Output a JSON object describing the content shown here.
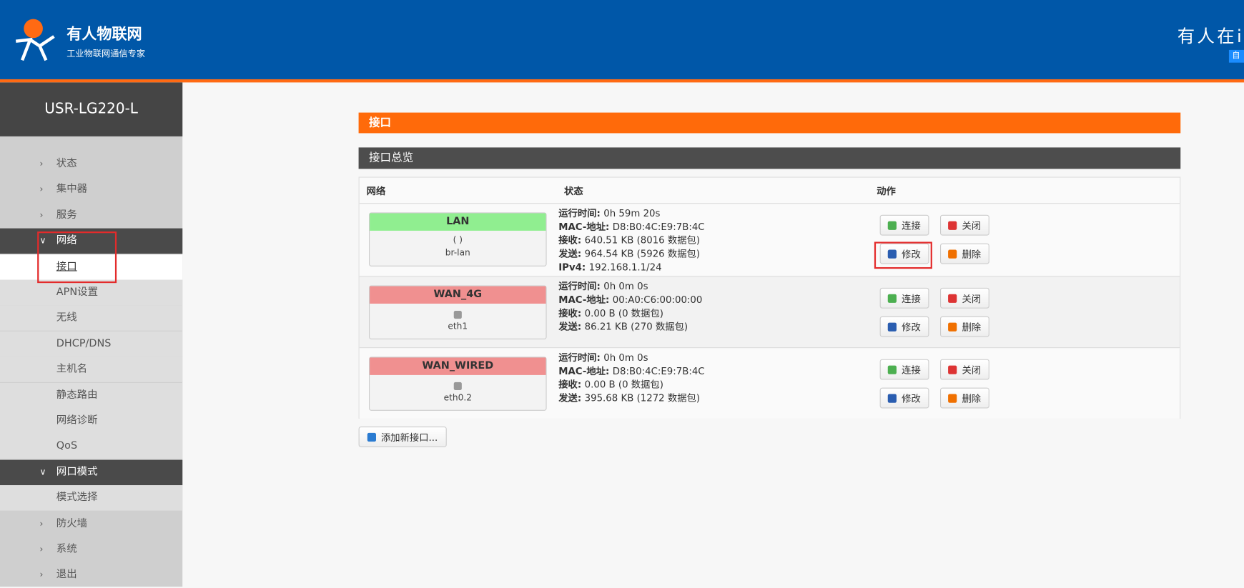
{
  "header": {
    "logo_name": "有人物联网",
    "logo_slogan": "工业物联网通信专家",
    "right_text": "有人在i",
    "badge": "自"
  },
  "sidebar": {
    "device": "USR-LG220-L",
    "menu": [
      {
        "label": "状态",
        "kind": "top"
      },
      {
        "label": "集中器",
        "kind": "top"
      },
      {
        "label": "服务",
        "kind": "top"
      },
      {
        "label": "网络",
        "kind": "open"
      },
      {
        "label": "接口",
        "kind": "current"
      },
      {
        "label": "APN设置",
        "kind": "sub"
      },
      {
        "label": "无线",
        "kind": "sub"
      },
      {
        "label": "DHCP/DNS",
        "kind": "sub"
      },
      {
        "label": "主机名",
        "kind": "sub"
      },
      {
        "label": "静态路由",
        "kind": "sub"
      },
      {
        "label": "网络诊断",
        "kind": "sub"
      },
      {
        "label": "QoS",
        "kind": "sub"
      },
      {
        "label": "网口模式",
        "kind": "open"
      },
      {
        "label": "模式选择",
        "kind": "sub"
      },
      {
        "label": "防火墙",
        "kind": "top"
      },
      {
        "label": "系统",
        "kind": "top"
      },
      {
        "label": "退出",
        "kind": "top"
      }
    ]
  },
  "main": {
    "title": "接口",
    "section": "接口总览",
    "table": {
      "headers": [
        "网络",
        "状态",
        "动作"
      ],
      "actions": [
        "连接",
        "关闭",
        "修改",
        "删除"
      ],
      "rows": [
        {
          "name": "LAN",
          "color": "#90ee90",
          "icons": "(   )",
          "device": "br-lan",
          "status": [
            [
              "运行时间:",
              "0h 59m 20s"
            ],
            [
              "MAC-地址:",
              "D8:B0:4C:E9:7B:4C"
            ],
            [
              "接收:",
              "640.51 KB (8016 数据包)"
            ],
            [
              "发送:",
              "964.54 KB (5926 数据包)"
            ],
            [
              "IPv4:",
              "192.168.1.1/24"
            ]
          ]
        },
        {
          "name": "WAN_4G",
          "color": "#f09090",
          "device": "eth1",
          "status": [
            [
              "运行时间:",
              "0h 0m 0s"
            ],
            [
              "MAC-地址:",
              "00:A0:C6:00:00:00"
            ],
            [
              "接收:",
              "0.00 B (0 数据包)"
            ],
            [
              "发送:",
              "86.21 KB (270 数据包)"
            ]
          ]
        },
        {
          "name": "WAN_WIRED",
          "color": "#f09090",
          "device": "eth0.2",
          "status": [
            [
              "运行时间:",
              "0h 0m 0s"
            ],
            [
              "MAC-地址:",
              "D8:B0:4C:E9:7B:4C"
            ],
            [
              "接收:",
              "0.00 B (0 数据包)"
            ],
            [
              "发送:",
              "395.68 KB (1272 数据包)"
            ]
          ]
        }
      ]
    },
    "add_button": "添加新接口..."
  }
}
